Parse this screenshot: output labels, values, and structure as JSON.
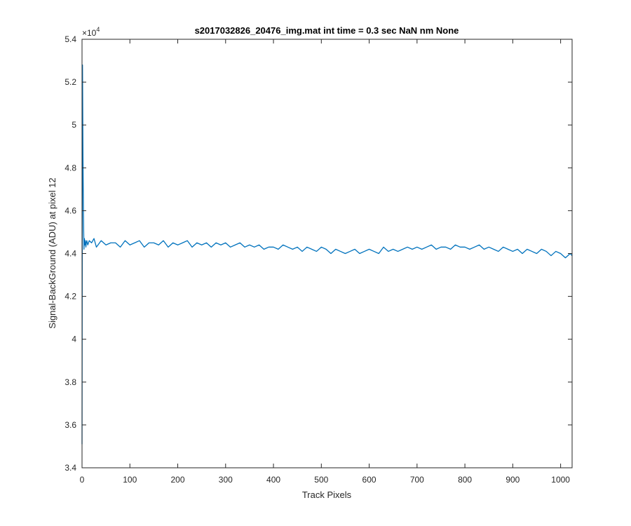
{
  "chart_data": {
    "type": "line",
    "title": "s2017032826_20476_img.mat int time = 0.3 sec  NaN nm None",
    "xlabel": "Track Pixels",
    "ylabel": "Signal-BackGround (ADU) at pixel 12",
    "y_exponent_base": "×10",
    "y_exponent_power": "4",
    "xlim": [
      0,
      1024
    ],
    "ylim": [
      34000,
      54000
    ],
    "x_ticks": [
      0,
      100,
      200,
      300,
      400,
      500,
      600,
      700,
      800,
      900,
      1000
    ],
    "y_ticks": [
      34000,
      36000,
      38000,
      40000,
      42000,
      44000,
      46000,
      48000,
      50000,
      52000,
      54000
    ],
    "x_tick_labels": [
      "0",
      "100",
      "200",
      "300",
      "400",
      "500",
      "600",
      "700",
      "800",
      "900",
      "1000"
    ],
    "y_tick_labels": [
      "3.4",
      "3.6",
      "3.8",
      "4",
      "4.2",
      "4.4",
      "4.6",
      "4.8",
      "5",
      "5.2",
      "5.4"
    ],
    "grid": false,
    "line_color": "#0072BD",
    "series": [
      {
        "x": [
          0,
          1,
          2,
          3,
          4,
          5,
          6,
          7,
          8,
          9,
          10,
          12,
          15,
          20,
          25,
          30,
          40,
          50,
          60,
          70,
          80,
          90,
          100,
          110,
          120,
          130,
          140,
          150,
          160,
          170,
          180,
          190,
          200,
          210,
          220,
          230,
          240,
          250,
          260,
          270,
          280,
          290,
          300,
          310,
          320,
          330,
          340,
          350,
          360,
          370,
          380,
          390,
          400,
          410,
          420,
          430,
          440,
          450,
          460,
          470,
          480,
          490,
          500,
          510,
          520,
          530,
          540,
          550,
          560,
          570,
          580,
          590,
          600,
          610,
          620,
          630,
          640,
          650,
          660,
          670,
          680,
          690,
          700,
          710,
          720,
          730,
          740,
          750,
          760,
          770,
          780,
          790,
          800,
          810,
          820,
          830,
          840,
          850,
          860,
          870,
          880,
          890,
          900,
          910,
          920,
          930,
          940,
          950,
          960,
          970,
          980,
          990,
          1000,
          1010,
          1020,
          1024
        ],
        "y": [
          35100,
          52800,
          48500,
          45800,
          44200,
          44700,
          44400,
          44600,
          44300,
          44500,
          44600,
          44400,
          44600,
          44500,
          44700,
          44300,
          44600,
          44400,
          44500,
          44500,
          44300,
          44600,
          44400,
          44500,
          44600,
          44300,
          44500,
          44500,
          44400,
          44600,
          44300,
          44500,
          44400,
          44500,
          44600,
          44300,
          44500,
          44400,
          44500,
          44300,
          44500,
          44400,
          44500,
          44300,
          44400,
          44500,
          44300,
          44400,
          44300,
          44400,
          44200,
          44300,
          44300,
          44200,
          44400,
          44300,
          44200,
          44300,
          44100,
          44300,
          44200,
          44100,
          44300,
          44200,
          44000,
          44200,
          44100,
          44000,
          44100,
          44200,
          44000,
          44100,
          44200,
          44100,
          44000,
          44300,
          44100,
          44200,
          44100,
          44200,
          44300,
          44200,
          44300,
          44200,
          44300,
          44400,
          44200,
          44300,
          44300,
          44200,
          44400,
          44300,
          44300,
          44200,
          44300,
          44400,
          44200,
          44300,
          44200,
          44100,
          44300,
          44200,
          44100,
          44200,
          44000,
          44200,
          44100,
          44000,
          44200,
          44100,
          43900,
          44100,
          44000,
          43800,
          44000,
          43900
        ]
      }
    ]
  }
}
